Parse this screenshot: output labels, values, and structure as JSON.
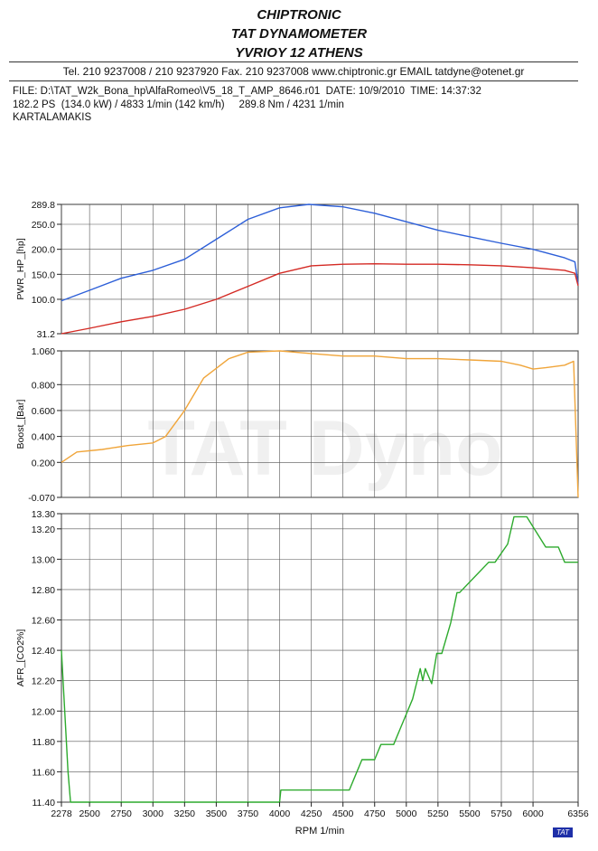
{
  "header": {
    "line1": "CHIPTRONIC",
    "line2": "TAT DYNAMOMETER",
    "line3": "YVRIOY 12 ATHENS",
    "contact": "Tel. 210 9237008 / 210 9237920    Fax. 210 9237008 www.chiptronic.gr EMAIL tatdyne@otenet.gr"
  },
  "info": {
    "file_line": "FILE: D:\\TAT_W2k_Bona_hp\\AlfaRomeo\\V5_18_T_AMP_8646.r01  DATE: 10/9/2010  TIME: 14:37:32",
    "power_line": "182.2 PS  (134.0 kW) / 4833 1/min (142 km/h)     289.8 Nm / 4231 1/min",
    "customer": "KARTALAMAKIS"
  },
  "watermark": "TAT Dyno",
  "badge": "TAT",
  "chart_data": [
    {
      "type": "line",
      "ylabel": "PWR_HP_[hp]",
      "ylim": [
        31.2,
        289.8
      ],
      "yticks": [
        "289.8",
        "250.0",
        "200.0",
        "150.0",
        "100.0",
        "31.2"
      ],
      "ytick_values": [
        289.8,
        250,
        200,
        150,
        100,
        31.2
      ],
      "colors": [
        "#2d5fd8",
        "#d42a24"
      ],
      "series": [
        {
          "x": [
            2278,
            2500,
            2750,
            3000,
            3250,
            3500,
            3750,
            4000,
            4231,
            4500,
            4750,
            5000,
            5250,
            5500,
            5750,
            6000,
            6250,
            6330,
            6356
          ],
          "values": [
            97,
            118,
            142,
            158,
            180,
            220,
            260,
            283,
            289.8,
            285,
            272,
            255,
            238,
            225,
            212,
            200,
            183,
            175,
            130
          ]
        },
        {
          "x": [
            2278,
            2500,
            2750,
            3000,
            3250,
            3500,
            3750,
            4000,
            4250,
            4500,
            4750,
            5000,
            5250,
            5500,
            5750,
            6000,
            6250,
            6330,
            6356
          ],
          "values": [
            31.2,
            42,
            55,
            66,
            80,
            100,
            126,
            152,
            167,
            170,
            171,
            170,
            170,
            169,
            167,
            163,
            158,
            152,
            127
          ]
        }
      ]
    },
    {
      "type": "line",
      "ylabel": "Boost_[Bar]",
      "ylim": [
        -0.07,
        1.06
      ],
      "yticks": [
        "1.060",
        "0.800",
        "0.600",
        "0.400",
        "0.200",
        "-0.070"
      ],
      "ytick_values": [
        1.06,
        0.8,
        0.6,
        0.4,
        0.2,
        -0.07
      ],
      "colors": [
        "#f0a53a"
      ],
      "series": [
        {
          "x": [
            2278,
            2400,
            2600,
            2800,
            3000,
            3100,
            3250,
            3400,
            3600,
            3750,
            4000,
            4250,
            4500,
            4750,
            5000,
            5250,
            5500,
            5750,
            5900,
            6000,
            6100,
            6250,
            6320,
            6356
          ],
          "values": [
            0.2,
            0.28,
            0.3,
            0.33,
            0.35,
            0.4,
            0.6,
            0.85,
            1.0,
            1.05,
            1.06,
            1.04,
            1.02,
            1.02,
            1.0,
            1.0,
            0.99,
            0.98,
            0.95,
            0.92,
            0.93,
            0.95,
            0.98,
            -0.07
          ]
        }
      ]
    },
    {
      "type": "line",
      "ylabel": "AFR_[CO2%]",
      "xlabel": "RPM 1/min",
      "ylim": [
        11.4,
        13.3
      ],
      "yticks": [
        "13.30",
        "13.20",
        "13.00",
        "12.80",
        "12.60",
        "12.40",
        "12.20",
        "12.00",
        "11.80",
        "11.60",
        "11.40"
      ],
      "ytick_values": [
        13.3,
        13.2,
        13.0,
        12.8,
        12.6,
        12.4,
        12.2,
        12.0,
        11.8,
        11.6,
        11.4
      ],
      "xticks": [
        "2278",
        "2500",
        "2750",
        "3000",
        "3250",
        "3500",
        "3750",
        "4000",
        "4250",
        "4500",
        "4750",
        "5000",
        "5250",
        "5500",
        "5750",
        "6000",
        "6356"
      ],
      "xtick_values": [
        2278,
        2500,
        2750,
        3000,
        3250,
        3500,
        3750,
        4000,
        4250,
        4500,
        4750,
        5000,
        5250,
        5500,
        5750,
        6000,
        6356
      ],
      "xlim": [
        2278,
        6356
      ],
      "colors": [
        "#2daa2d"
      ],
      "series": [
        {
          "x": [
            2278,
            2330,
            2350,
            4000,
            4010,
            4550,
            4600,
            4650,
            4750,
            4800,
            4900,
            4950,
            5000,
            5050,
            5080,
            5110,
            5130,
            5150,
            5200,
            5220,
            5240,
            5280,
            5350,
            5400,
            5420,
            5650,
            5700,
            5800,
            5850,
            5950,
            6100,
            6200,
            6250,
            6356
          ],
          "values": [
            12.4,
            11.6,
            11.4,
            11.4,
            11.48,
            11.48,
            11.58,
            11.68,
            11.68,
            11.78,
            11.78,
            11.88,
            11.98,
            12.08,
            12.18,
            12.28,
            12.2,
            12.28,
            12.18,
            12.28,
            12.38,
            12.38,
            12.58,
            12.78,
            12.78,
            12.98,
            12.98,
            13.1,
            13.28,
            13.28,
            13.08,
            13.08,
            12.98,
            12.98
          ]
        }
      ]
    }
  ]
}
